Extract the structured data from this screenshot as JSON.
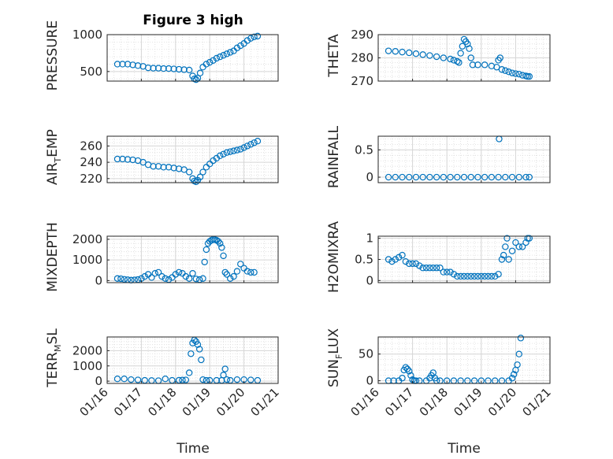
{
  "figure_title": "Figure 3 high",
  "colors": {
    "marker": "#0072BD",
    "axis": "#262626",
    "grid": "#d6d6d6",
    "minor_grid": "#dcdcdc"
  },
  "x_axis": {
    "label": "Time",
    "ticks": [
      0,
      1,
      2,
      3,
      4,
      5
    ],
    "tick_labels": [
      "01/16",
      "01/17",
      "01/18",
      "01/19",
      "01/20",
      "01/21"
    ]
  },
  "chart_data": [
    {
      "type": "scatter",
      "panel": "PRESSURE",
      "title": "Figure 3 high",
      "ylabel": "PRESSURE",
      "ylim": [
        370,
        1000
      ],
      "yticks": [
        500,
        1000
      ],
      "grid": true,
      "x": [
        0.3,
        0.45,
        0.6,
        0.75,
        0.9,
        1.05,
        1.2,
        1.35,
        1.5,
        1.65,
        1.8,
        1.95,
        2.1,
        2.25,
        2.4,
        2.5,
        2.55,
        2.6,
        2.65,
        2.72,
        2.8,
        2.9,
        3.0,
        3.1,
        3.2,
        3.3,
        3.4,
        3.5,
        3.6,
        3.7,
        3.8,
        3.9,
        4.0,
        4.1,
        4.2,
        4.3,
        4.4
      ],
      "y": [
        600,
        600,
        600,
        590,
        580,
        570,
        550,
        545,
        545,
        540,
        540,
        535,
        530,
        525,
        520,
        440,
        400,
        390,
        410,
        480,
        560,
        600,
        625,
        650,
        680,
        700,
        720,
        740,
        760,
        780,
        820,
        850,
        880,
        920,
        950,
        970,
        980
      ]
    },
    {
      "type": "scatter",
      "panel": "THETA",
      "ylabel": "THETA",
      "ylim": [
        270,
        290
      ],
      "yticks": [
        270,
        280,
        290
      ],
      "grid": true,
      "x": [
        0.3,
        0.5,
        0.7,
        0.9,
        1.1,
        1.3,
        1.5,
        1.7,
        1.9,
        2.1,
        2.2,
        2.3,
        2.35,
        2.4,
        2.45,
        2.5,
        2.55,
        2.6,
        2.65,
        2.7,
        2.75,
        2.9,
        3.1,
        3.3,
        3.45,
        3.5,
        3.55,
        3.6,
        3.7,
        3.8,
        3.9,
        4.0,
        4.1,
        4.2,
        4.3,
        4.35,
        4.4
      ],
      "y": [
        283,
        282.8,
        282.5,
        282.2,
        281.8,
        281.4,
        281,
        280.5,
        280,
        279.5,
        279,
        278.5,
        278,
        282,
        285,
        288,
        287,
        286,
        284,
        280,
        277,
        277,
        277,
        276.5,
        276,
        279,
        280,
        275,
        274.5,
        274,
        273.5,
        273.2,
        273,
        272.5,
        272.2,
        272,
        272
      ]
    },
    {
      "type": "scatter",
      "panel": "AIR_TEMP",
      "ylabel": "AIR_TEMP",
      "ylim": [
        215,
        272
      ],
      "yticks": [
        220,
        240,
        260
      ],
      "grid": true,
      "x": [
        0.3,
        0.45,
        0.6,
        0.75,
        0.9,
        1.05,
        1.2,
        1.35,
        1.5,
        1.65,
        1.8,
        1.95,
        2.1,
        2.25,
        2.4,
        2.5,
        2.55,
        2.6,
        2.65,
        2.72,
        2.8,
        2.9,
        3.0,
        3.1,
        3.2,
        3.3,
        3.4,
        3.5,
        3.6,
        3.7,
        3.8,
        3.9,
        4.0,
        4.1,
        4.2,
        4.3,
        4.4
      ],
      "y": [
        244,
        244,
        243.5,
        243,
        242,
        240,
        237,
        235,
        235,
        234,
        234,
        233,
        232,
        231,
        228,
        220,
        217,
        216,
        218,
        222,
        228,
        234,
        238,
        242,
        245,
        248,
        250,
        252,
        253,
        254,
        255,
        256,
        258,
        260,
        262,
        264,
        266
      ]
    },
    {
      "type": "scatter",
      "panel": "RAINFALL",
      "ylabel": "RAINFALL",
      "ylim": [
        -0.1,
        0.75
      ],
      "yticks": [
        0,
        0.5
      ],
      "grid": true,
      "x": [
        0.3,
        0.5,
        0.7,
        0.9,
        1.1,
        1.3,
        1.5,
        1.7,
        1.9,
        2.1,
        2.3,
        2.5,
        2.7,
        2.9,
        3.1,
        3.3,
        3.5,
        3.52,
        3.7,
        3.9,
        4.1,
        4.3,
        4.4
      ],
      "y": [
        0,
        0,
        0,
        0,
        0,
        0,
        0,
        0,
        0,
        0,
        0,
        0,
        0,
        0,
        0,
        0,
        0,
        0.7,
        0,
        0,
        0,
        0,
        0
      ]
    },
    {
      "type": "scatter",
      "panel": "MIXDEPTH",
      "ylabel": "MIXDEPTH",
      "ylim": [
        -100,
        2150
      ],
      "yticks": [
        0,
        1000,
        2000
      ],
      "grid": true,
      "x": [
        0.3,
        0.4,
        0.5,
        0.6,
        0.7,
        0.8,
        0.9,
        1.0,
        1.1,
        1.2,
        1.3,
        1.4,
        1.5,
        1.6,
        1.7,
        1.8,
        1.9,
        2.0,
        2.1,
        2.2,
        2.3,
        2.4,
        2.5,
        2.6,
        2.7,
        2.8,
        2.85,
        2.9,
        2.95,
        3.0,
        3.05,
        3.1,
        3.15,
        3.2,
        3.25,
        3.3,
        3.35,
        3.4,
        3.45,
        3.5,
        3.6,
        3.7,
        3.8,
        3.9,
        4.0,
        4.1,
        4.2,
        4.3
      ],
      "y": [
        100,
        90,
        60,
        40,
        20,
        30,
        50,
        100,
        200,
        300,
        150,
        350,
        400,
        200,
        100,
        50,
        150,
        300,
        400,
        350,
        200,
        100,
        350,
        80,
        50,
        100,
        900,
        1500,
        1800,
        1900,
        1950,
        2000,
        1980,
        1950,
        1900,
        1800,
        1600,
        1200,
        400,
        300,
        100,
        200,
        450,
        800,
        600,
        450,
        400,
        400
      ]
    },
    {
      "type": "scatter",
      "panel": "H2OMIXRA",
      "ylabel": "H2OMIXRA",
      "ylim": [
        -0.05,
        1.05
      ],
      "yticks": [
        0,
        0.5,
        1
      ],
      "grid": true,
      "x": [
        0.3,
        0.4,
        0.5,
        0.6,
        0.7,
        0.8,
        0.9,
        1.0,
        1.1,
        1.2,
        1.3,
        1.4,
        1.5,
        1.6,
        1.7,
        1.8,
        1.9,
        2.0,
        2.1,
        2.2,
        2.3,
        2.4,
        2.5,
        2.6,
        2.7,
        2.8,
        2.9,
        3.0,
        3.1,
        3.2,
        3.3,
        3.4,
        3.5,
        3.6,
        3.65,
        3.7,
        3.75,
        3.8,
        3.9,
        4.0,
        4.1,
        4.2,
        4.3,
        4.35,
        4.4
      ],
      "y": [
        0.5,
        0.45,
        0.5,
        0.55,
        0.6,
        0.45,
        0.4,
        0.4,
        0.4,
        0.35,
        0.3,
        0.3,
        0.3,
        0.3,
        0.3,
        0.3,
        0.2,
        0.2,
        0.2,
        0.15,
        0.1,
        0.1,
        0.1,
        0.1,
        0.1,
        0.1,
        0.1,
        0.1,
        0.1,
        0.1,
        0.1,
        0.1,
        0.15,
        0.5,
        0.6,
        0.8,
        1.0,
        0.5,
        0.7,
        0.9,
        0.8,
        0.8,
        0.9,
        1.0,
        1.0
      ]
    },
    {
      "type": "scatter",
      "panel": "TERR_MSL",
      "ylabel": "TERR_MSL",
      "ylim": [
        -150,
        2900
      ],
      "yticks": [
        0,
        1000,
        2000
      ],
      "grid": true,
      "x": [
        0.3,
        0.5,
        0.7,
        0.9,
        1.1,
        1.3,
        1.5,
        1.7,
        1.9,
        2.1,
        2.2,
        2.3,
        2.4,
        2.45,
        2.5,
        2.55,
        2.6,
        2.65,
        2.7,
        2.75,
        2.8,
        2.9,
        3.0,
        3.2,
        3.35,
        3.4,
        3.45,
        3.5,
        3.6,
        3.8,
        4.0,
        4.2,
        4.4
      ],
      "y": [
        150,
        150,
        100,
        80,
        50,
        40,
        30,
        150,
        50,
        60,
        70,
        80,
        550,
        1800,
        2500,
        2700,
        2600,
        2400,
        2100,
        1400,
        100,
        50,
        50,
        50,
        50,
        400,
        800,
        100,
        50,
        100,
        100,
        80,
        50
      ]
    },
    {
      "type": "scatter",
      "panel": "SUN_FLUX",
      "ylabel": "SUN_FLUX",
      "ylim": [
        -5,
        82
      ],
      "yticks": [
        0,
        50
      ],
      "grid": true,
      "x": [
        0.3,
        0.45,
        0.6,
        0.7,
        0.75,
        0.8,
        0.85,
        0.9,
        0.95,
        1.0,
        1.05,
        1.1,
        1.2,
        1.4,
        1.5,
        1.55,
        1.6,
        1.65,
        1.7,
        1.8,
        2.0,
        2.2,
        2.4,
        2.6,
        2.8,
        3.0,
        3.2,
        3.4,
        3.6,
        3.8,
        3.9,
        3.95,
        4.0,
        4.05,
        4.1,
        4.15
      ],
      "y": [
        0,
        0,
        0,
        5,
        20,
        25,
        22,
        18,
        10,
        2,
        0,
        0,
        0,
        0,
        5,
        10,
        15,
        5,
        0,
        0,
        0,
        0,
        0,
        0,
        0,
        0,
        0,
        0,
        0,
        0,
        5,
        12,
        20,
        30,
        50,
        80
      ]
    }
  ]
}
